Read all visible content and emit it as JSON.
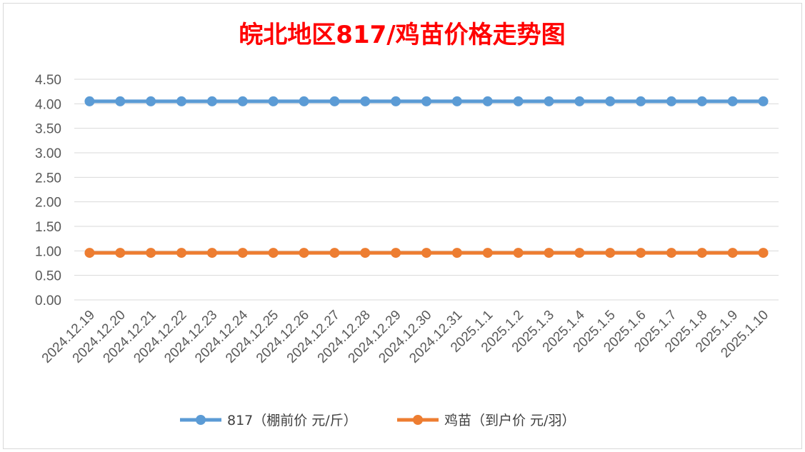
{
  "chart_data": {
    "type": "line",
    "title": "皖北地区817/鸡苗价格走势图",
    "xlabel": "",
    "ylabel": "",
    "categories": [
      "2024.12.19",
      "2024.12.20",
      "2024.12.21",
      "2024.12.22",
      "2024.12.23",
      "2024.12.24",
      "2024.12.25",
      "2024.12.26",
      "2024.12.27",
      "2024.12.28",
      "2024.12.29",
      "2024.12.30",
      "2024.12.31",
      "2025.1.1",
      "2025.1.2",
      "2025.1.3",
      "2025.1.4",
      "2025.1.5",
      "2025.1.6",
      "2025.1.7",
      "2025.1.8",
      "2025.1.9",
      "2025.1.10"
    ],
    "y_ticks": [
      "0.00",
      "0.50",
      "1.00",
      "1.50",
      "2.00",
      "2.50",
      "3.00",
      "3.50",
      "4.00",
      "4.50"
    ],
    "ylim": [
      0,
      4.5
    ],
    "grid": true,
    "legend_position": "bottom",
    "title_color": "#FF0000",
    "series": [
      {
        "name": "817（棚前价 元/斤）",
        "color": "#5B9BD5",
        "values": [
          4.05,
          4.05,
          4.05,
          4.05,
          4.05,
          4.05,
          4.05,
          4.05,
          4.05,
          4.05,
          4.05,
          4.05,
          4.05,
          4.05,
          4.05,
          4.05,
          4.05,
          4.05,
          4.05,
          4.05,
          4.05,
          4.05,
          4.05
        ]
      },
      {
        "name": "鸡苗（到户价 元/羽）",
        "color": "#ED7D31",
        "values": [
          0.96,
          0.96,
          0.96,
          0.96,
          0.96,
          0.96,
          0.96,
          0.96,
          0.96,
          0.96,
          0.96,
          0.96,
          0.96,
          0.96,
          0.96,
          0.96,
          0.96,
          0.96,
          0.96,
          0.96,
          0.96,
          0.96,
          0.96
        ]
      }
    ]
  }
}
